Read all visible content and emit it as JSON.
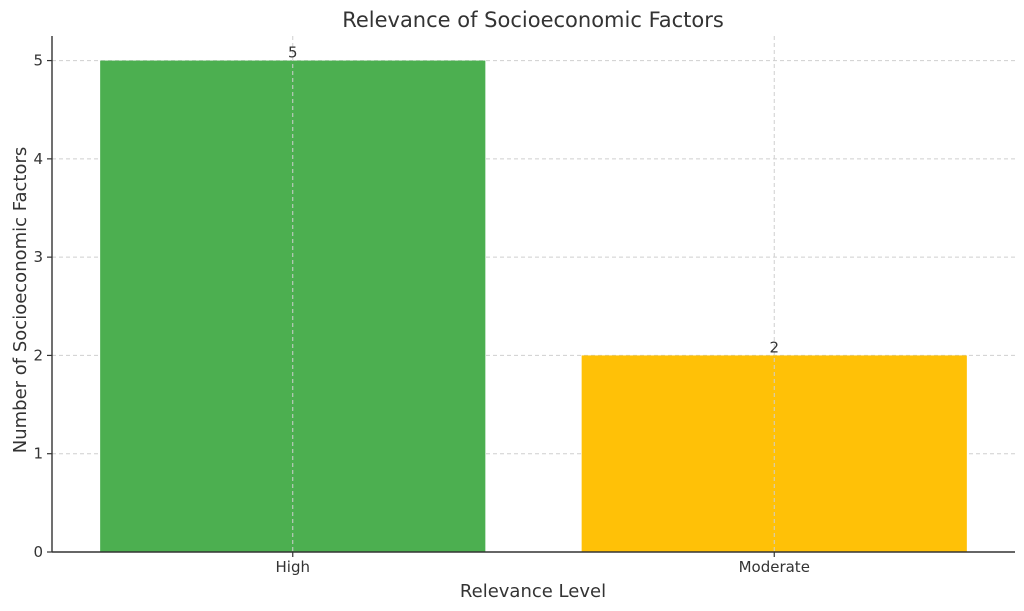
{
  "chart_data": {
    "type": "bar",
    "title": "Relevance of Socioeconomic Factors",
    "xlabel": "Relevance Level",
    "ylabel": "Number of Socioeconomic Factors",
    "categories": [
      "High",
      "Moderate"
    ],
    "values": [
      5,
      2
    ],
    "data_labels": [
      "5",
      "2"
    ],
    "colors": [
      "#4caf50",
      "#ffc107"
    ],
    "ylim": [
      0,
      5.25
    ],
    "yticks": [
      0,
      1,
      2,
      3,
      4,
      5
    ],
    "grid": true,
    "legend": "none"
  }
}
